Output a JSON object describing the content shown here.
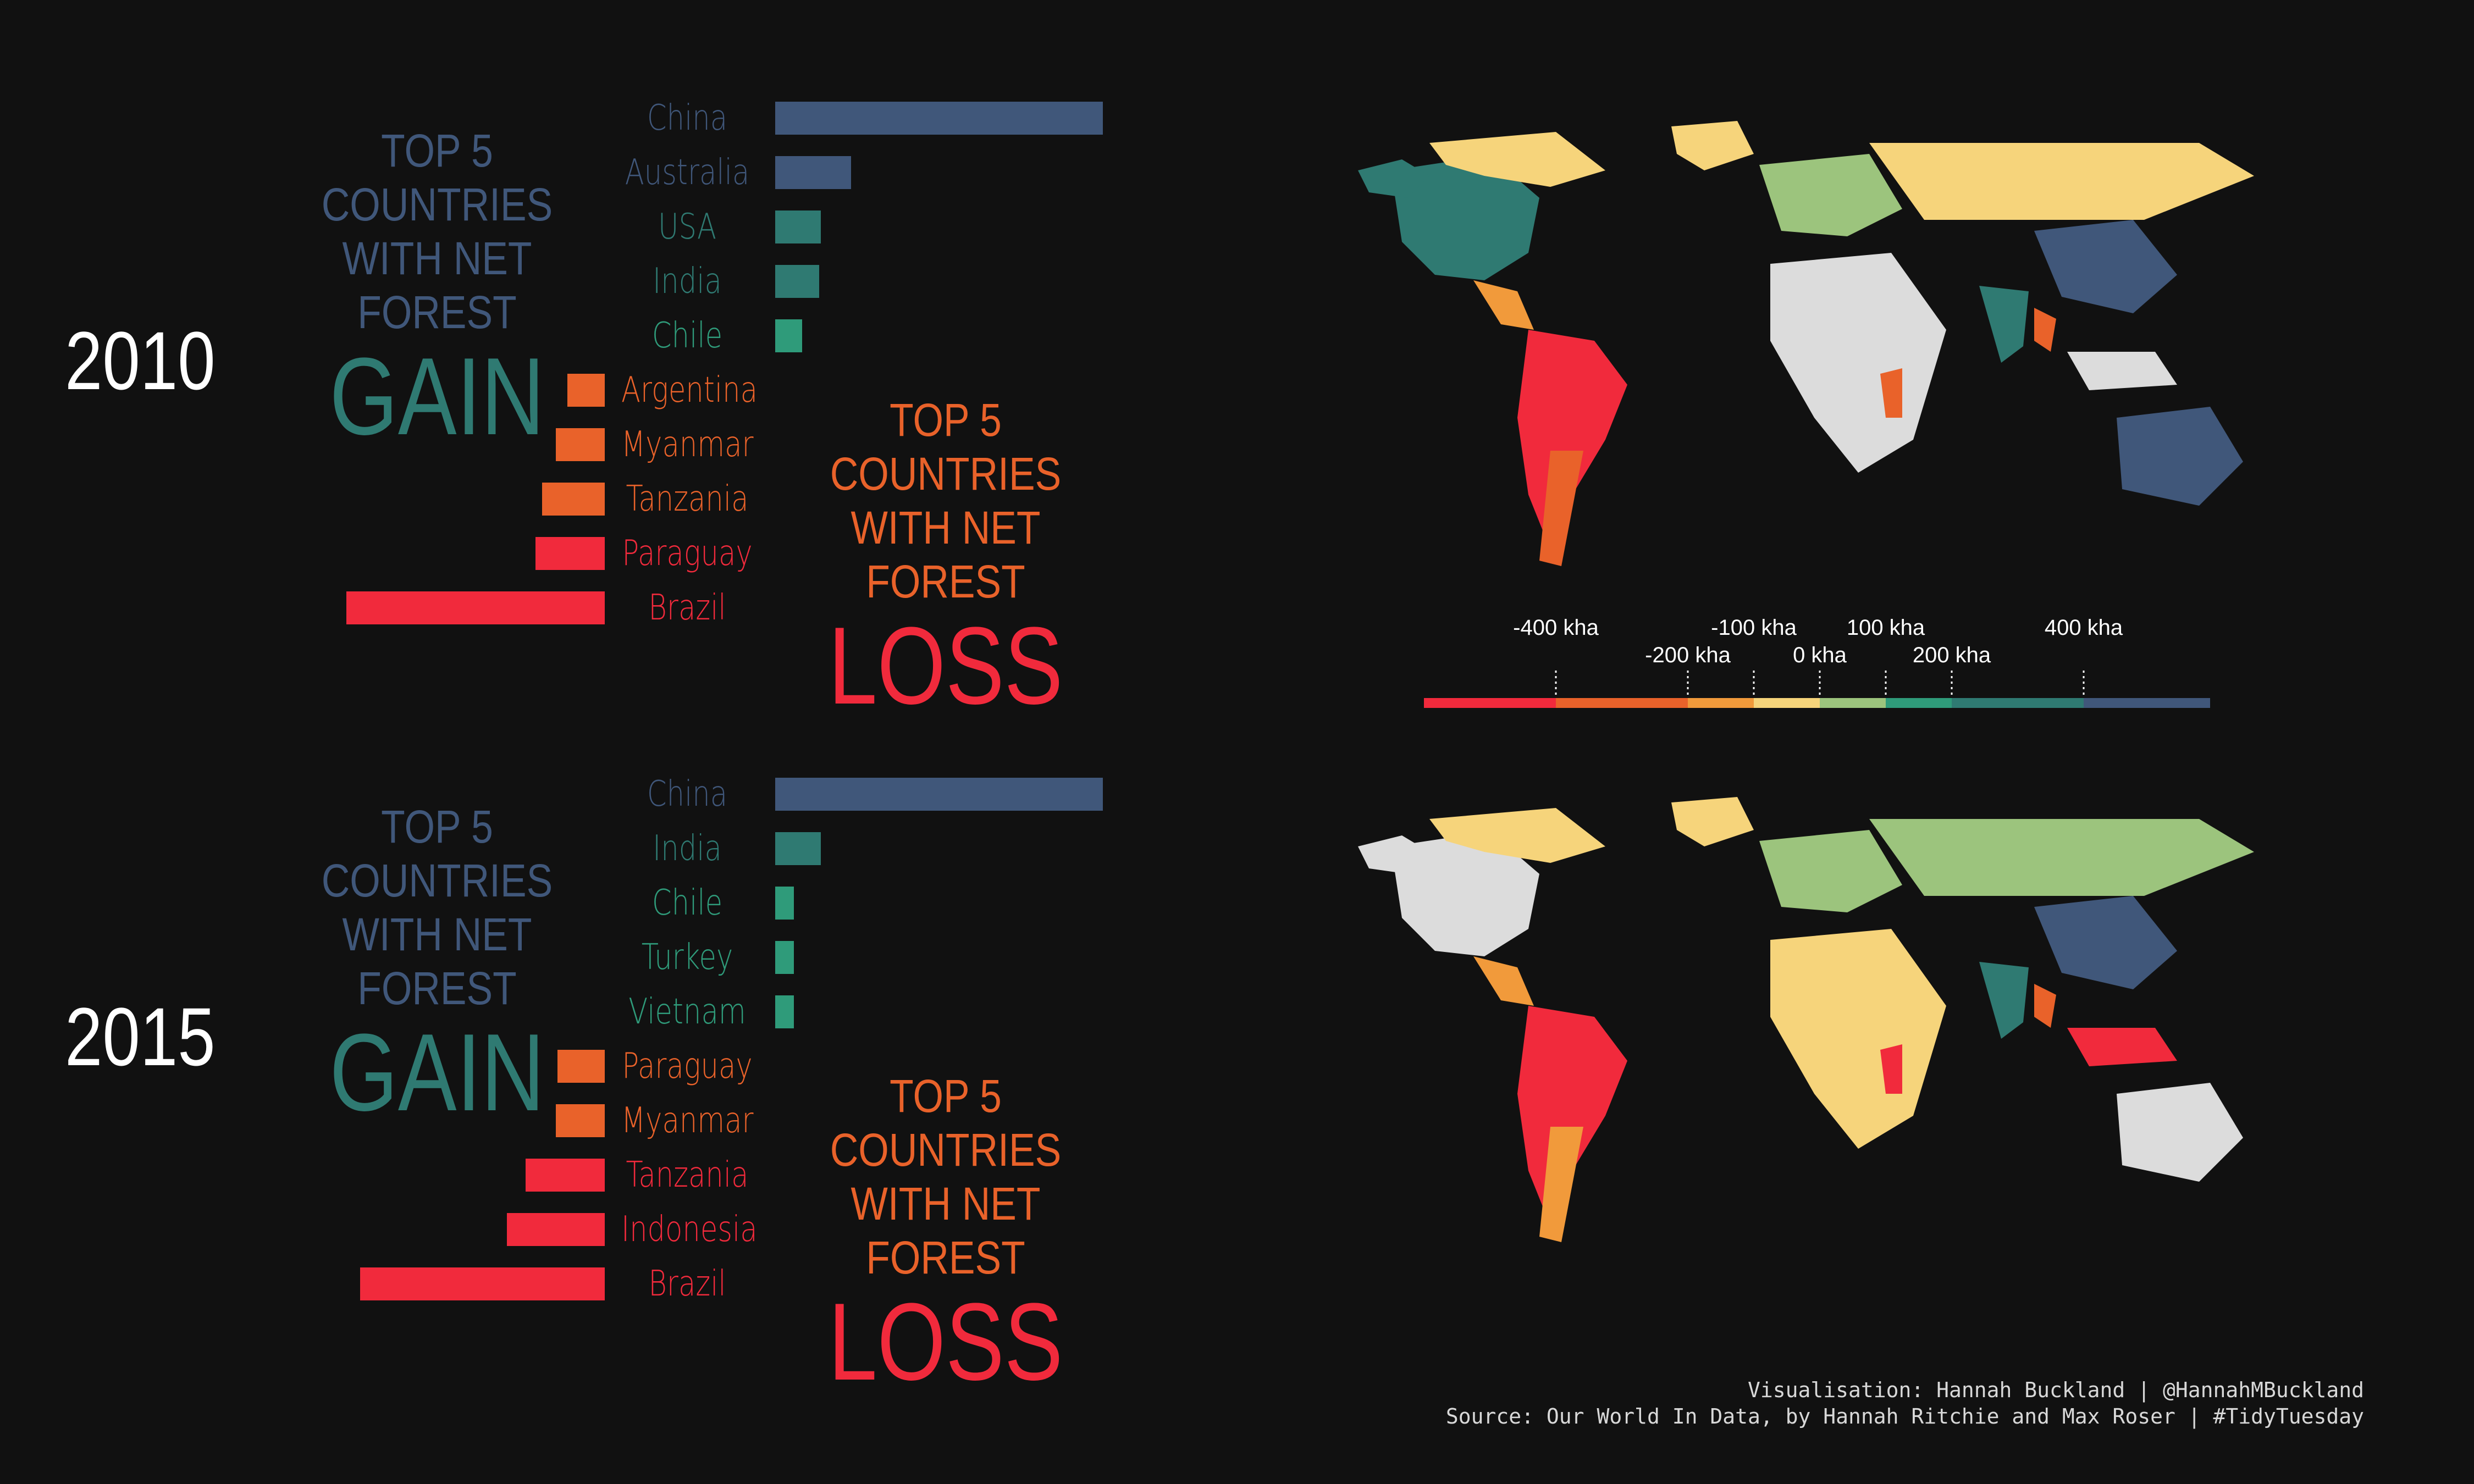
{
  "colors": {
    "background": "#111111",
    "gain_title": "#40577a",
    "gain_word": "#2f7a72",
    "loss_title": "#e9622a",
    "loss_word": "#f12a3c",
    "no_data": "#dcdcdc",
    "legend_scale": [
      "#f12a3c",
      "#e9622a",
      "#f19a3b",
      "#f6d47b",
      "#9cc47d",
      "#2f9b7a",
      "#2f7a72",
      "#40577a"
    ]
  },
  "gain_label_line1": "TOP 5 COUNTRIES",
  "gain_label_line2": "WITH NET FOREST",
  "gain_word": "GAIN",
  "loss_label_line1": "TOP 5 COUNTRIES",
  "loss_label_line2": "WITH NET FOREST",
  "loss_word": "LOSS",
  "legend": {
    "ticks": [
      "-400 kha",
      "-200 kha",
      "-100 kha",
      "0 kha",
      "100 kha",
      "200 kha",
      "400 kha"
    ]
  },
  "credits": {
    "line1": "Visualisation: Hannah Buckland | @HannahMBuckland",
    "line2": "Source: Our World In Data, by Hannah Ritchie and Max Roser | #TidyTuesday"
  },
  "chart_data": [
    {
      "type": "bar",
      "year": "2010",
      "categories": [
        "China",
        "Australia",
        "USA",
        "India",
        "Chile",
        "Argentina",
        "Myanmar",
        "Tanzania",
        "Paraguay",
        "Brazil"
      ],
      "values": [
        1940,
        450,
        270,
        260,
        160,
        -220,
        -290,
        -370,
        -410,
        -1530
      ],
      "bar_colors": [
        "#40577a",
        "#40577a",
        "#2f7a72",
        "#2f7a72",
        "#2f9b7a",
        "#e9622a",
        "#e9622a",
        "#e9622a",
        "#f12a3c",
        "#f12a3c"
      ],
      "label_colors": [
        "#40577a",
        "#40577a",
        "#2f7a72",
        "#2f7a72",
        "#2f9b7a",
        "#e9622a",
        "#e9622a",
        "#e9622a",
        "#f12a3c",
        "#f12a3c"
      ]
    },
    {
      "type": "bar",
      "year": "2015",
      "categories": [
        "China",
        "India",
        "Chile",
        "Turkey",
        "Vietnam",
        "Paraguay",
        "Myanmar",
        "Tanzania",
        "Indonesia",
        "Brazil"
      ],
      "values": [
        1940,
        270,
        110,
        110,
        110,
        -280,
        -290,
        -470,
        -580,
        -1450
      ],
      "bar_colors": [
        "#40577a",
        "#2f7a72",
        "#2f9b7a",
        "#2f9b7a",
        "#2f9b7a",
        "#e9622a",
        "#e9622a",
        "#f12a3c",
        "#f12a3c",
        "#f12a3c"
      ],
      "label_colors": [
        "#40577a",
        "#2f7a72",
        "#2f9b7a",
        "#2f9b7a",
        "#2f9b7a",
        "#e9622a",
        "#e9622a",
        "#f12a3c",
        "#f12a3c",
        "#f12a3c"
      ]
    }
  ]
}
